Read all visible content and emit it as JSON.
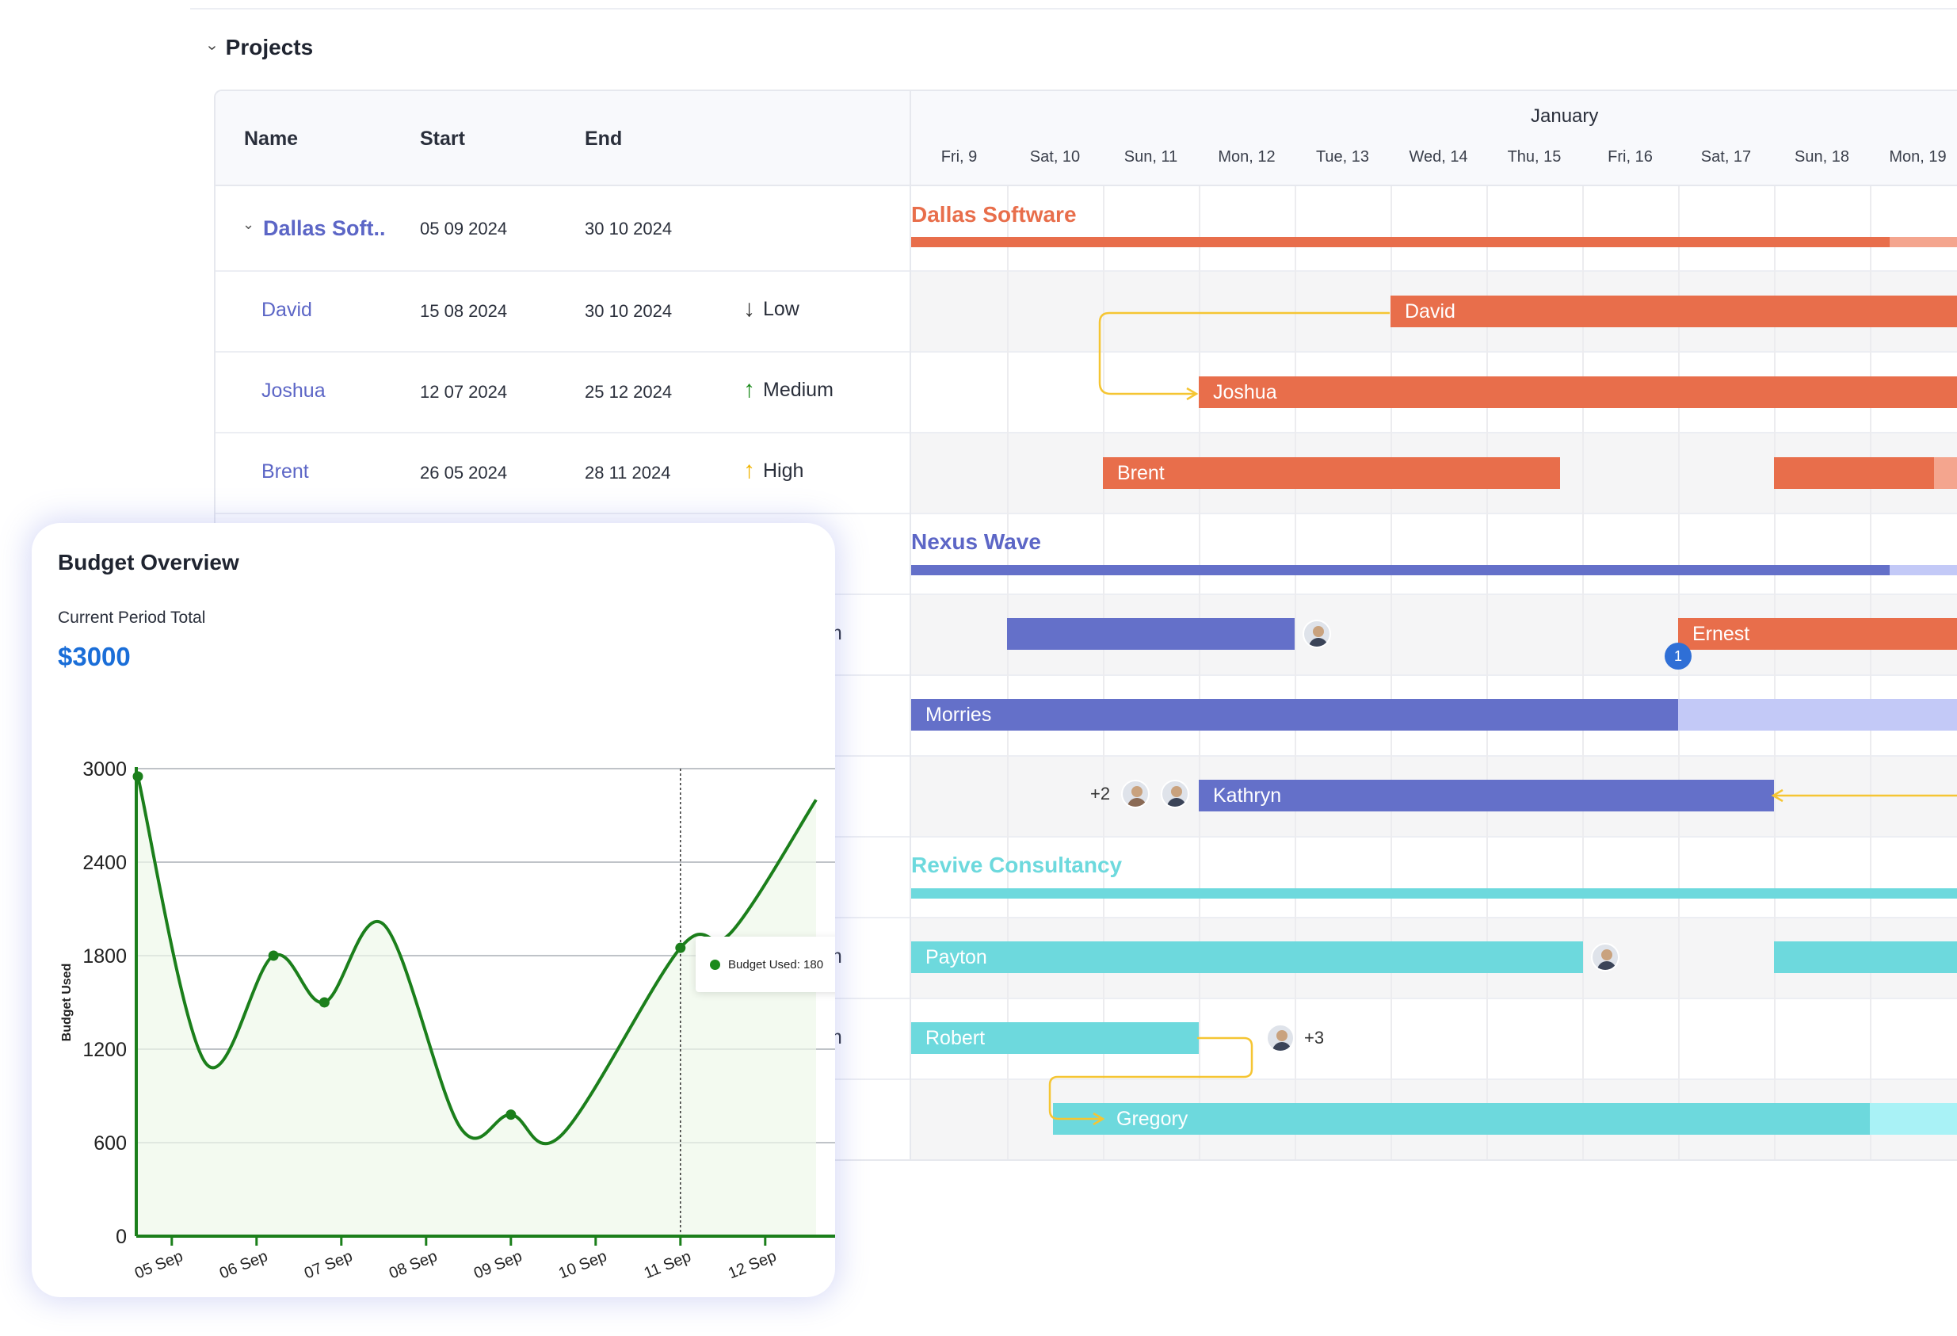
{
  "section": {
    "title": "Projects"
  },
  "columns": {
    "name": "Name",
    "start": "Start",
    "end": "End"
  },
  "timeline": {
    "month": "January",
    "days": [
      "Fri, 9",
      "Sat, 10",
      "Sun, 11",
      "Mon, 12",
      "Tue, 13",
      "Wed, 14",
      "Thu, 15",
      "Fri, 16",
      "Sat, 17",
      "Sun, 18",
      "Mon, 19"
    ]
  },
  "rows": {
    "group1": {
      "name": "Dallas Soft..",
      "start": "05 09 2024",
      "end": "30 10 2024"
    },
    "r1": {
      "name": "David",
      "start": "15 08 2024",
      "end": "30 10 2024",
      "priority": "Low"
    },
    "r2": {
      "name": "Joshua",
      "start": "12 07 2024",
      "end": "25 12 2024",
      "priority": "Medium"
    },
    "r3": {
      "name": "Brent",
      "start": "26 05 2024",
      "end": "28 11 2024",
      "priority": "High"
    },
    "partial_m": "m"
  },
  "gantt": {
    "groups": {
      "dallas": {
        "label": "Dallas Software",
        "color": "#e86e4b",
        "light": "#f4a58e"
      },
      "nexus": {
        "label": "Nexus Wave",
        "color": "#6470c9",
        "light": "#c3c9f7"
      },
      "revive": {
        "label": "Revive Consultancy",
        "color": "#6dd9dd",
        "light": "#a9f2f6"
      }
    },
    "bars": {
      "david": "David",
      "joshua": "Joshua",
      "brent": "Brent",
      "ernest": "Ernest",
      "morries": "Morries",
      "kathryn": "Kathryn",
      "payton": "Payton",
      "robert": "Robert",
      "gregory": "Gregory"
    },
    "extras": {
      "kathryn_plus": "+2",
      "robert_plus": "+3",
      "ernest_badge": "1"
    },
    "connector_color": "#f5c533"
  },
  "budget": {
    "title": "Budget Overview",
    "subtitle": "Current Period Total",
    "total": "$3000",
    "tooltip": "Budget Used: 180",
    "chart_data": {
      "type": "line",
      "ylabel": "Budget Used",
      "ylim": [
        0,
        3000
      ],
      "yticks": [
        0,
        600,
        1200,
        1800,
        2400,
        3000
      ],
      "xticks": [
        "05 Sep",
        "06 Sep",
        "07 Sep",
        "08 Sep",
        "09 Sep",
        "10 Sep",
        "11 Sep",
        "12 Sep"
      ],
      "series": [
        {
          "color": "#1b7f1b",
          "points": [
            {
              "x": 4.6,
              "y": 2950,
              "marker": true
            },
            {
              "x": 5.4,
              "y": 1110
            },
            {
              "x": 6.2,
              "y": 1800,
              "marker": true
            },
            {
              "x": 6.8,
              "y": 1500,
              "marker": true
            },
            {
              "x": 7.5,
              "y": 2000
            },
            {
              "x": 8.4,
              "y": 700
            },
            {
              "x": 9.0,
              "y": 780,
              "marker": true
            },
            {
              "x": 9.6,
              "y": 650
            },
            {
              "x": 11.0,
              "y": 1850,
              "marker": true
            },
            {
              "x": 11.6,
              "y": 1950
            },
            {
              "x": 12.6,
              "y": 2800
            }
          ]
        }
      ],
      "highlight_x": 11.0
    }
  }
}
